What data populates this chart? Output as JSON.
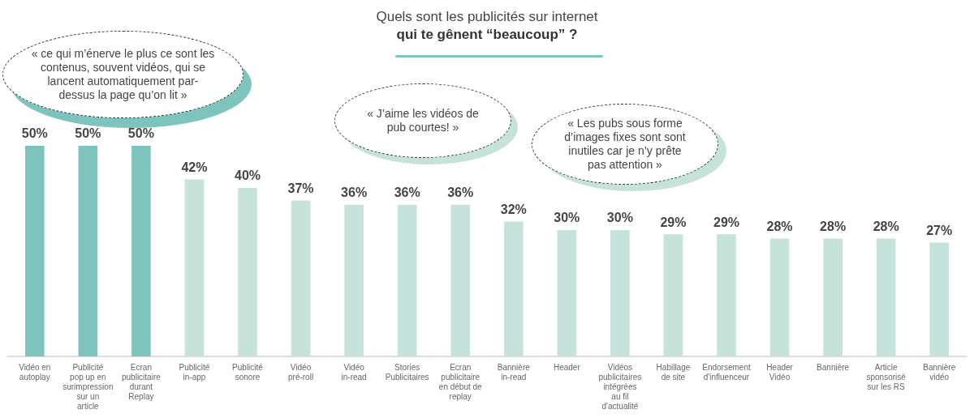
{
  "chart_data": {
    "type": "bar",
    "title": "Quels sont les publicités sur internet",
    "subtitle": "qui te gênent “beaucoup” ?",
    "categories": [
      "Vidéo en autoplay",
      "Publicité pop up en surimpression sur un article",
      "Ecran publicitaire durant Replay",
      "Publicité in-app",
      "Publicité sonore",
      "Vidéo pré-roll",
      "Vidéo in-read",
      "Stories Publicitaires",
      "Ecran publicitaire en début de replay",
      "Bannière in-read",
      "Header",
      "Vidéos publicitaires intégrées au fil d'actualité",
      "Habillage de site",
      "Endorsement d'influenceur",
      "Header Vidéo",
      "Bannière",
      "Article sponsorisé sur les RS",
      "Bannière vidéo"
    ],
    "values": [
      50,
      50,
      50,
      42,
      40,
      37,
      36,
      36,
      36,
      32,
      30,
      30,
      29,
      29,
      28,
      28,
      28,
      27
    ],
    "colors": [
      "#7dc4bd",
      "#7dc4bd",
      "#7dc4bd",
      "#c5e3da",
      "#c5e3da",
      "#c5e3da",
      "#c5e3da",
      "#c5e3da",
      "#c5e3da",
      "#c5e3da",
      "#c5e3da",
      "#c5e3da",
      "#c5e3da",
      "#c5e3da",
      "#c5e3da",
      "#c5e3da",
      "#c5e3da",
      "#c5e3da"
    ],
    "value_labels": [
      "50%",
      "50%",
      "50%",
      "42%",
      "40%",
      "37%",
      "36%",
      "36%",
      "36%",
      "32%",
      "30%",
      "30%",
      "29%",
      "29%",
      "28%",
      "28%",
      "28%",
      "27%"
    ],
    "annotations": [
      "« ce qui m’énerve le plus ce sont les contenus, souvent vidéos, qui se lancent automatiquement par-dessus la page qu’on lit »",
      "« J’aime les vidéos de pub courtes! »",
      "« Les pubs sous forme d’images fixes sont sont inutiles car je n’y prête pas attention »"
    ],
    "grid": false,
    "legend": false
  }
}
